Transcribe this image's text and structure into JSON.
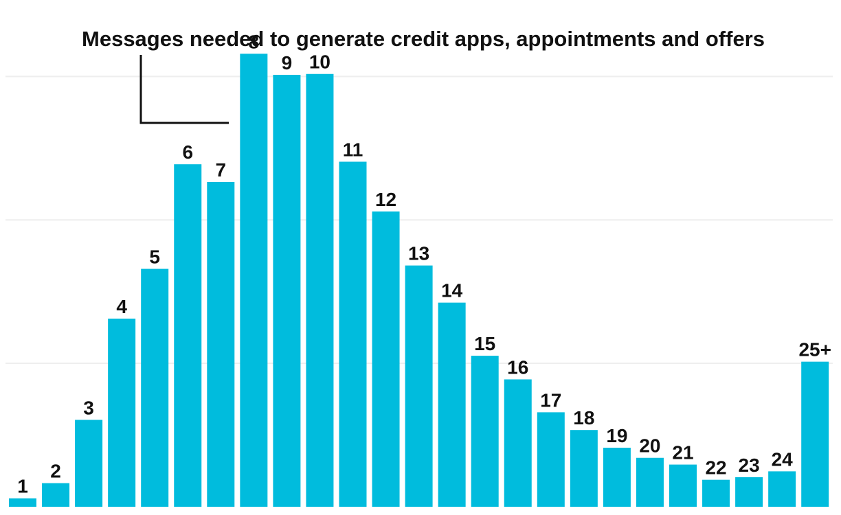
{
  "colors": {
    "bar": "#00bcdd",
    "gridline": "#eeeeee",
    "text": "#111111"
  },
  "chart_data": {
    "type": "bar",
    "title": "Messages needed to generate credit apps, appointments and offers",
    "xlabel": "",
    "ylabel": "",
    "categories": [
      "1",
      "2",
      "3",
      "4",
      "5",
      "6",
      "7",
      "8",
      "9",
      "10",
      "11",
      "12",
      "13",
      "14",
      "15",
      "16",
      "17",
      "18",
      "19",
      "20",
      "21",
      "22",
      "23",
      "24",
      "25+"
    ],
    "values": [
      10,
      28,
      103,
      223,
      282,
      406,
      385,
      537,
      512,
      513,
      409,
      350,
      286,
      242,
      179,
      151,
      112,
      91,
      70,
      58,
      50,
      32,
      35,
      42,
      172
    ],
    "ylim": [
      0,
      560
    ],
    "gridlines": [
      170,
      340,
      510
    ],
    "grid": true,
    "legend": "none"
  }
}
